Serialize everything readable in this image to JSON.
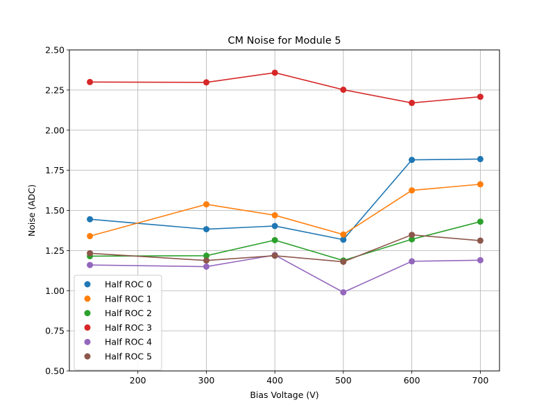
{
  "chart_data": {
    "type": "line",
    "title": "CM Noise for Module 5",
    "xlabel": "Bias Voltage (V)",
    "ylabel": "Noise (ADC)",
    "x": [
      130,
      300,
      400,
      500,
      600,
      700
    ],
    "xlim": [
      100,
      728
    ],
    "ylim": [
      0.5,
      2.5
    ],
    "x_ticks": [
      200,
      300,
      400,
      500,
      600,
      700
    ],
    "x_tick_labels": [
      "200",
      "300",
      "400",
      "500",
      "600",
      "700"
    ],
    "y_ticks": [
      0.5,
      0.75,
      1.0,
      1.25,
      1.5,
      1.75,
      2.0,
      2.25,
      2.5
    ],
    "y_tick_labels": [
      "0.50",
      "0.75",
      "1.00",
      "1.25",
      "1.50",
      "1.75",
      "2.00",
      "2.25",
      "2.50"
    ],
    "grid": true,
    "legend_position": "lower-left",
    "series": [
      {
        "name": "Half ROC 0",
        "color": "#1f77b4",
        "values": [
          1.445,
          1.383,
          1.403,
          1.318,
          1.815,
          1.82
        ]
      },
      {
        "name": "Half ROC 1",
        "color": "#ff7f0e",
        "values": [
          1.34,
          1.538,
          1.47,
          1.35,
          1.625,
          1.663
        ]
      },
      {
        "name": "Half ROC 2",
        "color": "#2ca02c",
        "values": [
          1.215,
          1.218,
          1.315,
          1.188,
          1.32,
          1.43
        ]
      },
      {
        "name": "Half ROC 3",
        "color": "#d62728",
        "values": [
          2.3,
          2.298,
          2.358,
          2.252,
          2.17,
          2.208
        ]
      },
      {
        "name": "Half ROC 4",
        "color": "#9467bd",
        "values": [
          1.16,
          1.15,
          1.222,
          0.99,
          1.183,
          1.19
        ]
      },
      {
        "name": "Half ROC 5",
        "color": "#8c564b",
        "values": [
          1.233,
          1.188,
          1.218,
          1.18,
          1.348,
          1.312
        ]
      }
    ]
  }
}
